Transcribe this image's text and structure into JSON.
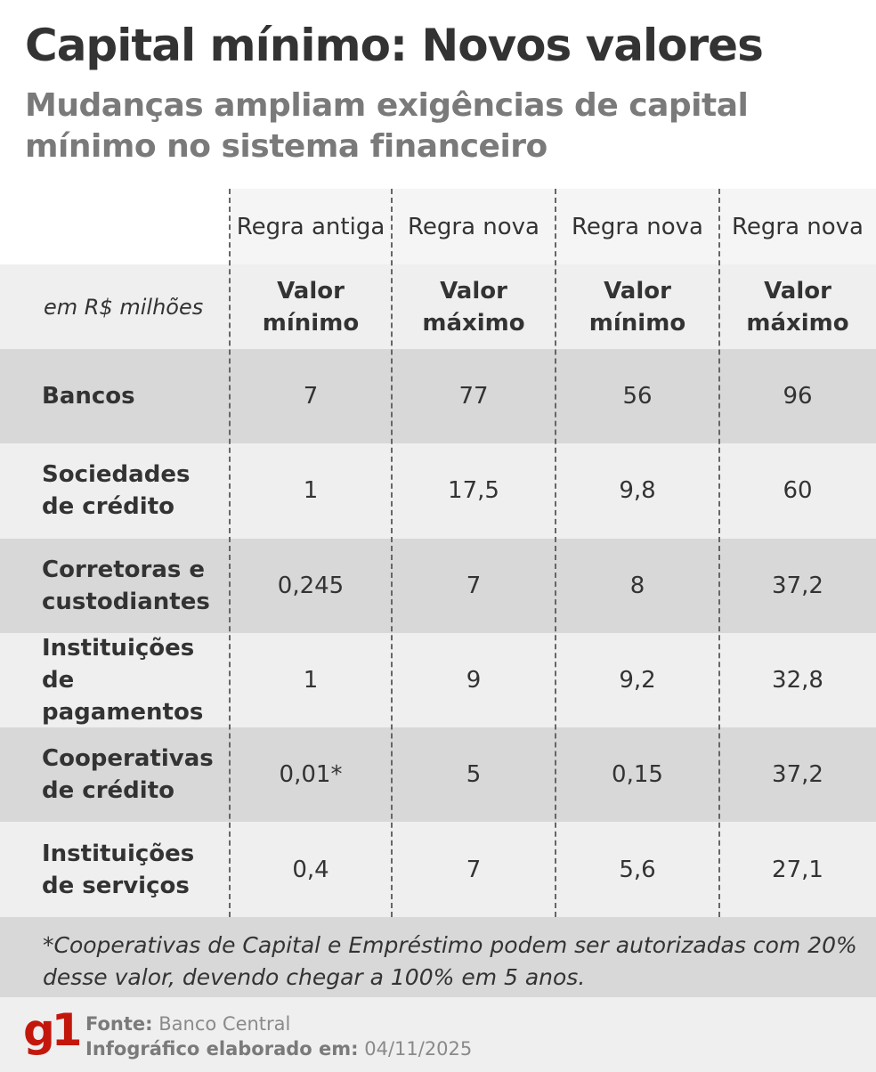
{
  "title": "Capital mínimo: Novos valores",
  "subtitle": "Mudanças ampliam exigências de capital mínimo no sistema financeiro",
  "chart_data": {
    "type": "table",
    "unit_label": "em R$ milhões",
    "column_groups": [
      "Regra antiga",
      "Regra nova",
      "Regra nova",
      "Regra nova"
    ],
    "columns": [
      "Valor mínimo",
      "Valor máximo",
      "Valor mínimo",
      "Valor máximo"
    ],
    "rows": [
      {
        "label": "Bancos",
        "values": [
          "7",
          "77",
          "56",
          "96"
        ]
      },
      {
        "label": "Sociedades de crédito",
        "values": [
          "1",
          "17,5",
          "9,8",
          "60"
        ]
      },
      {
        "label": "Corretoras e custodiantes",
        "values": [
          "0,245",
          "7",
          "8",
          "37,2"
        ]
      },
      {
        "label": "Instituições de pagamentos",
        "values": [
          "1",
          "9",
          "9,2",
          "32,8"
        ]
      },
      {
        "label": "Cooperativas de crédito",
        "values": [
          "0,01*",
          "5",
          "0,15",
          "37,2"
        ]
      },
      {
        "label": "Instituições de serviços",
        "values": [
          "0,4",
          "7",
          "5,6",
          "27,1"
        ]
      }
    ]
  },
  "footnote": "*Cooperativas de Capital e Empréstimo podem ser autorizadas com 20% desse valor, devendo chegar a 100% em 5 anos.",
  "footer": {
    "logo": "g1",
    "source_label": "Fonte:",
    "source": "Banco Central",
    "date_label": "Infográfico elaborado em:",
    "date": "04/11/2025"
  },
  "colors": {
    "brand": "#c4170c",
    "row_dark": "#d8d8d8",
    "row_light": "#efefef"
  }
}
